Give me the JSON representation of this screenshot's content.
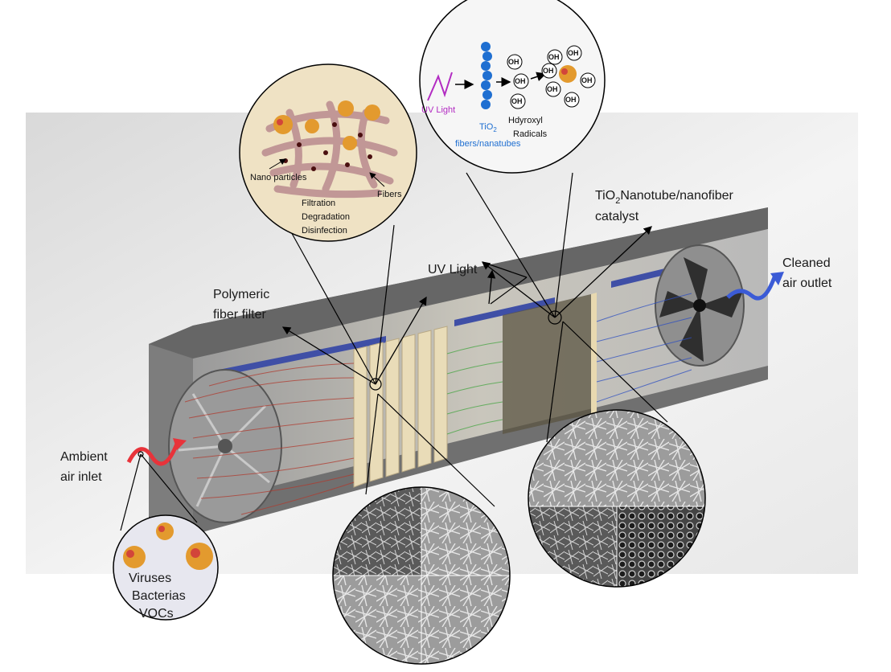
{
  "labels": {
    "polymeric": [
      "Polymeric",
      "fiber filter"
    ],
    "uv_light": "UV Light",
    "catalyst_line1_pre": "TiO",
    "catalyst_line1_sub": "2",
    "catalyst_line1_post": "Nanotube/nanofiber",
    "catalyst_line2": "catalyst",
    "cleaned": [
      "Cleaned",
      "air outlet"
    ],
    "ambient": [
      "Ambient",
      "air inlet"
    ]
  },
  "filter_inset": {
    "nano_particles": "Nano particles",
    "fibers": "Fibers",
    "processes": [
      "Filtration",
      "Degradation",
      "Disinfection"
    ]
  },
  "photocatalysis_inset": {
    "uv": "UV Light",
    "tio2_pre": "TiO",
    "tio2_sub": "2",
    "tio2_line2": "fibers/nanatubes",
    "radicals": [
      "Hdyroxyl",
      "Radicals"
    ],
    "oh": "OH"
  },
  "pollutants_inset": [
    "Viruses",
    "Bacterias",
    "VOCs"
  ],
  "colors": {
    "uv_violet": "#b22bc2",
    "tio2_blue": "#1f6fd1",
    "inlet_red": "#e8333a",
    "outlet_blue": "#3b5bd6",
    "filter_beige": "#efe2c4",
    "fiber_mauve": "#b98a8f",
    "virus_orange": "#e39a2e",
    "housing_gray": "#6f6f6f"
  }
}
